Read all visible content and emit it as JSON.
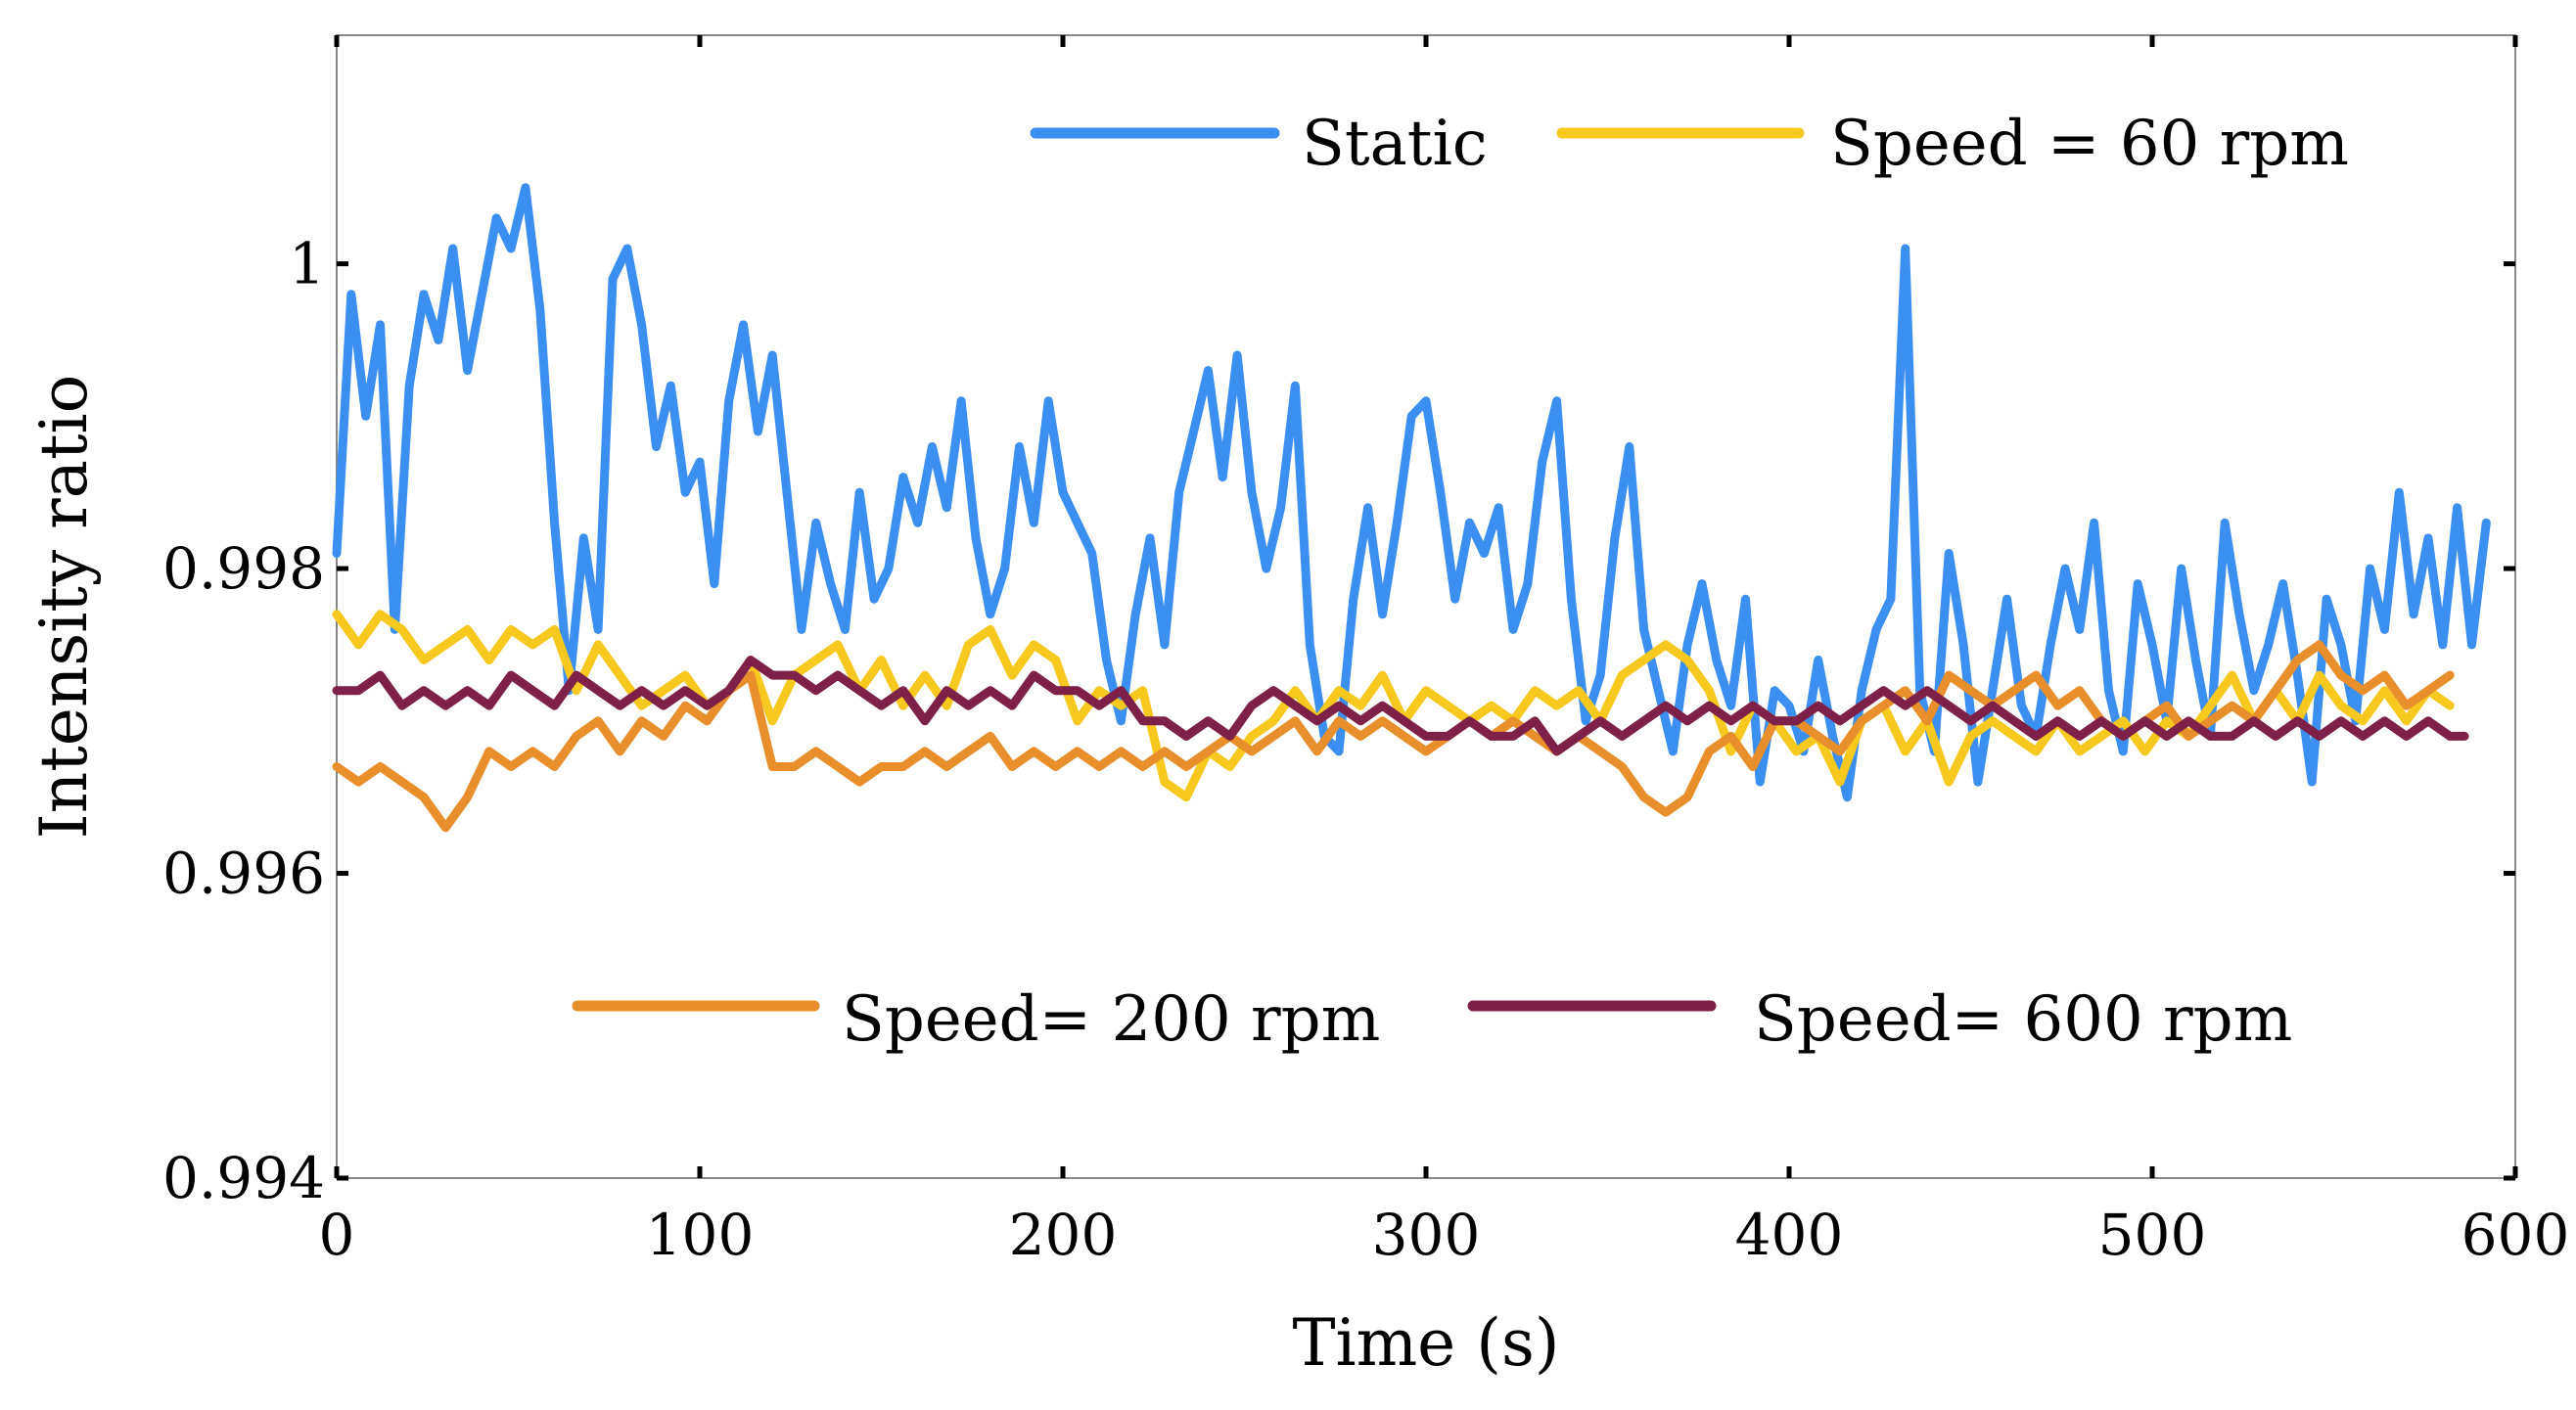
{
  "chart_data": {
    "type": "line",
    "title": "",
    "xlabel": "Time (s)",
    "ylabel": "Intensity ratio",
    "xlim": [
      0,
      600
    ],
    "ylim": [
      0.994,
      1.0015
    ],
    "xticks": [
      0,
      100,
      200,
      300,
      400,
      500,
      600
    ],
    "xtick_labels": [
      "0",
      "100",
      "200",
      "300",
      "400",
      "500",
      "600"
    ],
    "yticks": [
      0.994,
      0.996,
      0.998,
      1.0
    ],
    "ytick_labels": [
      "0.994",
      "0.996",
      "0.998",
      "1"
    ],
    "grid": false,
    "legend": [
      {
        "name": "Static",
        "placement": "top"
      },
      {
        "name": "Speed = 60 rpm",
        "placement": "top"
      },
      {
        "name": "Speed= 200 rpm",
        "placement": "bottom"
      },
      {
        "name": "Speed= 600 rpm",
        "placement": "bottom"
      }
    ],
    "series": [
      {
        "name": "Static",
        "color": "#3b8ff0",
        "x": [
          0,
          4,
          8,
          12,
          16,
          20,
          24,
          28,
          32,
          36,
          40,
          44,
          48,
          52,
          56,
          60,
          64,
          68,
          72,
          76,
          80,
          84,
          88,
          92,
          96,
          100,
          104,
          108,
          112,
          116,
          120,
          124,
          128,
          132,
          136,
          140,
          144,
          148,
          152,
          156,
          160,
          164,
          168,
          172,
          176,
          180,
          184,
          188,
          192,
          196,
          200,
          204,
          208,
          212,
          216,
          220,
          224,
          228,
          232,
          236,
          240,
          244,
          248,
          252,
          256,
          260,
          264,
          268,
          272,
          276,
          280,
          284,
          288,
          292,
          296,
          300,
          304,
          308,
          312,
          316,
          320,
          324,
          328,
          332,
          336,
          340,
          344,
          348,
          352,
          356,
          360,
          364,
          368,
          372,
          376,
          380,
          384,
          388,
          392,
          396,
          400,
          404,
          408,
          412,
          416,
          420,
          424,
          428,
          432,
          436,
          440,
          444,
          448,
          452,
          456,
          460,
          464,
          468,
          472,
          476,
          480,
          484,
          488,
          492,
          496,
          500,
          504,
          508,
          512,
          516,
          520,
          524,
          528,
          532,
          536,
          540,
          544,
          548,
          552,
          556,
          560,
          564,
          568,
          572,
          576,
          580,
          584,
          588,
          592
        ],
        "values": [
          0.9981,
          0.9998,
          0.999,
          0.9996,
          0.9976,
          0.9992,
          0.9998,
          0.9995,
          1.0001,
          0.9993,
          0.9998,
          1.0003,
          1.0001,
          1.0005,
          0.9997,
          0.9983,
          0.9972,
          0.9982,
          0.9976,
          0.9999,
          1.0001,
          0.9996,
          0.9988,
          0.9992,
          0.9985,
          0.9987,
          0.9979,
          0.9991,
          0.9996,
          0.9989,
          0.9994,
          0.9985,
          0.9976,
          0.9983,
          0.9979,
          0.9976,
          0.9985,
          0.9978,
          0.998,
          0.9986,
          0.9983,
          0.9988,
          0.9984,
          0.9991,
          0.9982,
          0.9977,
          0.998,
          0.9988,
          0.9983,
          0.9991,
          0.9985,
          0.9983,
          0.9981,
          0.9974,
          0.997,
          0.9977,
          0.9982,
          0.9975,
          0.9985,
          0.9989,
          0.9993,
          0.9986,
          0.9994,
          0.9985,
          0.998,
          0.9984,
          0.9992,
          0.9975,
          0.9969,
          0.9968,
          0.9978,
          0.9984,
          0.9977,
          0.9983,
          0.999,
          0.9991,
          0.9985,
          0.9978,
          0.9983,
          0.9981,
          0.9984,
          0.9976,
          0.9979,
          0.9987,
          0.9991,
          0.9978,
          0.997,
          0.9973,
          0.9982,
          0.9988,
          0.9976,
          0.9972,
          0.9968,
          0.9975,
          0.9979,
          0.9974,
          0.9971,
          0.9978,
          0.9966,
          0.9972,
          0.9971,
          0.9968,
          0.9974,
          0.9969,
          0.9965,
          0.9972,
          0.9976,
          0.9978,
          1.0001,
          0.9972,
          0.9968,
          0.9981,
          0.9975,
          0.9966,
          0.9972,
          0.9978,
          0.9971,
          0.9969,
          0.9975,
          0.998,
          0.9976,
          0.9983,
          0.9972,
          0.9968,
          0.9979,
          0.9975,
          0.997,
          0.998,
          0.9974,
          0.9969,
          0.9983,
          0.9977,
          0.9972,
          0.9975,
          0.9979,
          0.9973,
          0.9966,
          0.9978,
          0.9975,
          0.997,
          0.998,
          0.9976,
          0.9985,
          0.9977,
          0.9982,
          0.9975,
          0.9984,
          0.9975,
          0.9983
        ]
      },
      {
        "name": "Speed = 60 rpm",
        "color": "#f7c81e",
        "x": [
          0,
          6,
          12,
          18,
          24,
          30,
          36,
          42,
          48,
          54,
          60,
          66,
          72,
          78,
          84,
          90,
          96,
          102,
          108,
          114,
          120,
          126,
          132,
          138,
          144,
          150,
          156,
          162,
          168,
          174,
          180,
          186,
          192,
          198,
          204,
          210,
          216,
          222,
          228,
          234,
          240,
          246,
          252,
          258,
          264,
          270,
          276,
          282,
          288,
          294,
          300,
          306,
          312,
          318,
          324,
          330,
          336,
          342,
          348,
          354,
          360,
          366,
          372,
          378,
          384,
          390,
          396,
          402,
          408,
          414,
          420,
          426,
          432,
          438,
          444,
          450,
          456,
          462,
          468,
          474,
          480,
          486,
          492,
          498,
          504,
          510,
          516,
          522,
          528,
          534,
          540,
          546,
          552,
          558,
          564,
          570,
          576,
          582
        ],
        "values": [
          0.9977,
          0.9975,
          0.9977,
          0.9976,
          0.9974,
          0.9975,
          0.9976,
          0.9974,
          0.9976,
          0.9975,
          0.9976,
          0.9972,
          0.9975,
          0.9973,
          0.9971,
          0.9972,
          0.9973,
          0.9971,
          0.9972,
          0.9974,
          0.997,
          0.9973,
          0.9974,
          0.9975,
          0.9972,
          0.9974,
          0.9971,
          0.9973,
          0.9971,
          0.9975,
          0.9976,
          0.9973,
          0.9975,
          0.9974,
          0.997,
          0.9972,
          0.9971,
          0.9972,
          0.9966,
          0.9965,
          0.9968,
          0.9967,
          0.9969,
          0.997,
          0.9972,
          0.997,
          0.9972,
          0.9971,
          0.9973,
          0.997,
          0.9972,
          0.9971,
          0.997,
          0.9971,
          0.997,
          0.9972,
          0.9971,
          0.9972,
          0.997,
          0.9973,
          0.9974,
          0.9975,
          0.9974,
          0.9972,
          0.9968,
          0.9971,
          0.997,
          0.9968,
          0.9969,
          0.9966,
          0.997,
          0.9971,
          0.9968,
          0.997,
          0.9966,
          0.9969,
          0.997,
          0.9969,
          0.9968,
          0.997,
          0.9968,
          0.9969,
          0.997,
          0.9968,
          0.997,
          0.9969,
          0.9971,
          0.9973,
          0.997,
          0.9972,
          0.997,
          0.9973,
          0.9971,
          0.997,
          0.9972,
          0.997,
          0.9972,
          0.9971
        ]
      },
      {
        "name": "Speed= 200 rpm",
        "color": "#e88e2a",
        "x": [
          0,
          6,
          12,
          18,
          24,
          30,
          36,
          42,
          48,
          54,
          60,
          66,
          72,
          78,
          84,
          90,
          96,
          102,
          108,
          114,
          120,
          126,
          132,
          138,
          144,
          150,
          156,
          162,
          168,
          174,
          180,
          186,
          192,
          198,
          204,
          210,
          216,
          222,
          228,
          234,
          240,
          246,
          252,
          258,
          264,
          270,
          276,
          282,
          288,
          294,
          300,
          306,
          312,
          318,
          324,
          330,
          336,
          342,
          348,
          354,
          360,
          366,
          372,
          378,
          384,
          390,
          396,
          402,
          408,
          414,
          420,
          426,
          432,
          438,
          444,
          450,
          456,
          462,
          468,
          474,
          480,
          486,
          492,
          498,
          504,
          510,
          516,
          522,
          528,
          534,
          540,
          546,
          552,
          558,
          564,
          570,
          576,
          582
        ],
        "values": [
          0.9967,
          0.9966,
          0.9967,
          0.9966,
          0.9965,
          0.9963,
          0.9965,
          0.9968,
          0.9967,
          0.9968,
          0.9967,
          0.9969,
          0.997,
          0.9968,
          0.997,
          0.9969,
          0.9971,
          0.997,
          0.9972,
          0.9973,
          0.9967,
          0.9967,
          0.9968,
          0.9967,
          0.9966,
          0.9967,
          0.9967,
          0.9968,
          0.9967,
          0.9968,
          0.9969,
          0.9967,
          0.9968,
          0.9967,
          0.9968,
          0.9967,
          0.9968,
          0.9967,
          0.9968,
          0.9967,
          0.9968,
          0.9969,
          0.9968,
          0.9969,
          0.997,
          0.9968,
          0.997,
          0.9969,
          0.997,
          0.9969,
          0.9968,
          0.9969,
          0.997,
          0.9969,
          0.997,
          0.9969,
          0.9968,
          0.9969,
          0.9968,
          0.9967,
          0.9965,
          0.9964,
          0.9965,
          0.9968,
          0.9969,
          0.9967,
          0.997,
          0.997,
          0.9969,
          0.9968,
          0.997,
          0.9971,
          0.9972,
          0.997,
          0.9973,
          0.9972,
          0.9971,
          0.9972,
          0.9973,
          0.9971,
          0.9972,
          0.997,
          0.9969,
          0.997,
          0.9971,
          0.9969,
          0.997,
          0.9971,
          0.997,
          0.9972,
          0.9974,
          0.9975,
          0.9973,
          0.9972,
          0.9973,
          0.9971,
          0.9972,
          0.9973
        ]
      },
      {
        "name": "Speed= 600 rpm",
        "color": "#7e2148",
        "x": [
          0,
          6,
          12,
          18,
          24,
          30,
          36,
          42,
          48,
          54,
          60,
          66,
          72,
          78,
          84,
          90,
          96,
          102,
          108,
          114,
          120,
          126,
          132,
          138,
          144,
          150,
          156,
          162,
          168,
          174,
          180,
          186,
          192,
          198,
          204,
          210,
          216,
          222,
          228,
          234,
          240,
          246,
          252,
          258,
          264,
          270,
          276,
          282,
          288,
          294,
          300,
          306,
          312,
          318,
          324,
          330,
          336,
          342,
          348,
          354,
          360,
          366,
          372,
          378,
          384,
          390,
          396,
          402,
          408,
          414,
          420,
          426,
          432,
          438,
          444,
          450,
          456,
          462,
          468,
          474,
          480,
          486,
          492,
          498,
          504,
          510,
          516,
          522,
          528,
          534,
          540,
          546,
          552,
          558,
          564,
          570,
          576,
          582,
          586
        ],
        "values": [
          0.9972,
          0.9972,
          0.9973,
          0.9971,
          0.9972,
          0.9971,
          0.9972,
          0.9971,
          0.9973,
          0.9972,
          0.9971,
          0.9973,
          0.9972,
          0.9971,
          0.9972,
          0.9971,
          0.9972,
          0.9971,
          0.9972,
          0.9974,
          0.9973,
          0.9973,
          0.9972,
          0.9973,
          0.9972,
          0.9971,
          0.9972,
          0.997,
          0.9972,
          0.9971,
          0.9972,
          0.9971,
          0.9973,
          0.9972,
          0.9972,
          0.9971,
          0.9972,
          0.997,
          0.997,
          0.9969,
          0.997,
          0.9969,
          0.9971,
          0.9972,
          0.9971,
          0.997,
          0.9971,
          0.997,
          0.9971,
          0.997,
          0.9969,
          0.9969,
          0.997,
          0.9969,
          0.9969,
          0.997,
          0.9968,
          0.9969,
          0.997,
          0.9969,
          0.997,
          0.9971,
          0.997,
          0.9971,
          0.997,
          0.9971,
          0.997,
          0.997,
          0.9971,
          0.997,
          0.9971,
          0.9972,
          0.9971,
          0.9972,
          0.9971,
          0.997,
          0.9971,
          0.997,
          0.9969,
          0.997,
          0.9969,
          0.997,
          0.9969,
          0.997,
          0.9969,
          0.997,
          0.9969,
          0.9969,
          0.997,
          0.9969,
          0.997,
          0.9969,
          0.997,
          0.9969,
          0.997,
          0.9969,
          0.997,
          0.9969,
          0.9969
        ]
      }
    ]
  }
}
